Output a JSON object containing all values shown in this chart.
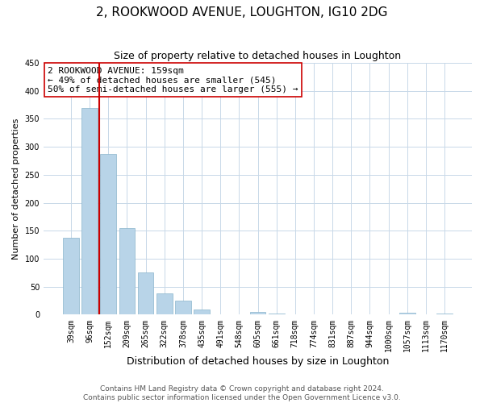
{
  "title": "2, ROOKWOOD AVENUE, LOUGHTON, IG10 2DG",
  "subtitle": "Size of property relative to detached houses in Loughton",
  "xlabel": "Distribution of detached houses by size in Loughton",
  "ylabel": "Number of detached properties",
  "categories": [
    "39sqm",
    "96sqm",
    "152sqm",
    "209sqm",
    "265sqm",
    "322sqm",
    "378sqm",
    "435sqm",
    "491sqm",
    "548sqm",
    "605sqm",
    "661sqm",
    "718sqm",
    "774sqm",
    "831sqm",
    "887sqm",
    "944sqm",
    "1000sqm",
    "1057sqm",
    "1113sqm",
    "1170sqm"
  ],
  "values": [
    138,
    370,
    288,
    155,
    75,
    38,
    25,
    10,
    0,
    0,
    5,
    2,
    0,
    0,
    0,
    0,
    0,
    0,
    3,
    0,
    2
  ],
  "bar_color": "#b8d4e8",
  "bar_edge_color": "#8ab4cc",
  "vline_color": "#cc0000",
  "annotation_title": "2 ROOKWOOD AVENUE: 159sqm",
  "annotation_line1": "← 49% of detached houses are smaller (545)",
  "annotation_line2": "50% of semi-detached houses are larger (555) →",
  "annotation_box_edge_color": "#cc0000",
  "ylim": [
    0,
    450
  ],
  "yticks": [
    0,
    50,
    100,
    150,
    200,
    250,
    300,
    350,
    400,
    450
  ],
  "footnote1": "Contains HM Land Registry data © Crown copyright and database right 2024.",
  "footnote2": "Contains public sector information licensed under the Open Government Licence v3.0.",
  "background_color": "#ffffff",
  "grid_color": "#c8d8e8",
  "title_fontsize": 11,
  "subtitle_fontsize": 9,
  "axis_label_fontsize": 8,
  "ylabel_fontsize": 8,
  "tick_fontsize": 7,
  "annotation_fontsize": 8,
  "footnote_fontsize": 6.5
}
